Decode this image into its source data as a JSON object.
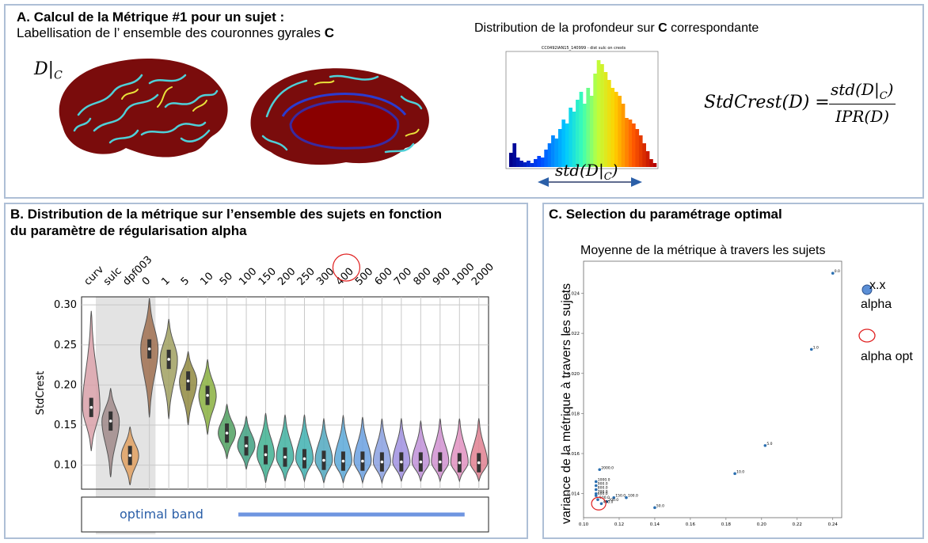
{
  "panelA": {
    "title": "A. Calcul de la Métrique #1 pour un sujet :",
    "subtitle_text": "Labellisation de l’ ensemble des couronnes gyrales ",
    "subtitle_bold": "C",
    "dlabel": "D|",
    "dlabel_sub": "C",
    "hist_title_text": "Distribution de la profondeur sur ",
    "hist_title_bold": "C",
    "hist_title_after": " correspondante",
    "hist_small_title": "CC0492IAN15_140999 - dist sulc on crests",
    "std_label": "std(D|",
    "std_sub": "C",
    "std_close": ")",
    "formula_lhs": "StdCrest(D) =",
    "formula_num": "std(D|",
    "formula_num_sub": "C",
    "formula_den": "IPR(D)"
  },
  "panelB": {
    "title": "B. Distribution de la métrique sur l’ensemble des sujets en fonction\ndu paramètre de régularisation alpha",
    "ylabel": "StdCrest",
    "band_label": "optimal band",
    "chart_data": {
      "type": "violin",
      "categories": [
        "curv",
        "sulc",
        "dpf003",
        "0",
        "1",
        "5",
        "10",
        "50",
        "100",
        "150",
        "200",
        "250",
        "300",
        "400",
        "500",
        "600",
        "700",
        "800",
        "900",
        "1000",
        "2000"
      ],
      "medians": [
        0.172,
        0.155,
        0.112,
        0.245,
        0.232,
        0.205,
        0.187,
        0.14,
        0.124,
        0.113,
        0.11,
        0.108,
        0.106,
        0.105,
        0.105,
        0.104,
        0.104,
        0.104,
        0.104,
        0.103,
        0.103
      ],
      "ymin": [
        0.118,
        0.085,
        0.075,
        0.16,
        0.158,
        0.15,
        0.138,
        0.108,
        0.095,
        0.078,
        0.08,
        0.08,
        0.078,
        0.078,
        0.078,
        0.078,
        0.08,
        0.08,
        0.08,
        0.08,
        0.08
      ],
      "ymax": [
        0.292,
        0.196,
        0.148,
        0.308,
        0.282,
        0.242,
        0.232,
        0.176,
        0.161,
        0.165,
        0.163,
        0.163,
        0.158,
        0.162,
        0.16,
        0.158,
        0.158,
        0.155,
        0.158,
        0.158,
        0.158
      ],
      "ylim": [
        0.07,
        0.31
      ],
      "yticks": [
        "0.30",
        "0.25",
        "0.20",
        "0.15",
        "0.10"
      ],
      "highlighted": "400"
    }
  },
  "panelC": {
    "title": "C. Selection du paramétrage optimal",
    "plot_title": "Moyenne de la métrique à travers les sujets",
    "ylabel": "variance de la métrique à travers les sujets",
    "legend_point": "x.x",
    "legend_point_desc": "alpha",
    "legend_circle_desc": "alpha opt",
    "chart_data": {
      "type": "scatter",
      "xlim": [
        0.1,
        0.245
      ],
      "ylim": [
        0.0128,
        0.0256
      ],
      "xticks": [
        "0.10",
        "0.12",
        "0.14",
        "0.16",
        "0.18",
        "0.20",
        "0.22",
        "0.24"
      ],
      "yticks": [
        "0.014",
        "0.016",
        "0.018",
        "0.020",
        "0.022",
        "0.024"
      ],
      "points": [
        {
          "x": 0.24,
          "y": 0.025,
          "label": "0.0"
        },
        {
          "x": 0.228,
          "y": 0.0212,
          "label": "1.0"
        },
        {
          "x": 0.202,
          "y": 0.0164,
          "label": "5.0"
        },
        {
          "x": 0.185,
          "y": 0.015,
          "label": "10.0"
        },
        {
          "x": 0.14,
          "y": 0.0133,
          "label": "50.0"
        },
        {
          "x": 0.124,
          "y": 0.0138,
          "label": "100.0"
        },
        {
          "x": 0.117,
          "y": 0.0138,
          "label": "150.0"
        },
        {
          "x": 0.113,
          "y": 0.0136,
          "label": "200.0"
        },
        {
          "x": 0.11,
          "y": 0.0135,
          "label": "400.0"
        },
        {
          "x": 0.109,
          "y": 0.0152,
          "label": "2000.0"
        },
        {
          "x": 0.107,
          "y": 0.0146,
          "label": "1000.0"
        },
        {
          "x": 0.107,
          "y": 0.0144,
          "label": "900.0"
        },
        {
          "x": 0.107,
          "y": 0.0142,
          "label": "800.0"
        },
        {
          "x": 0.107,
          "y": 0.014,
          "label": "700.0"
        },
        {
          "x": 0.107,
          "y": 0.0139,
          "label": "600.0"
        },
        {
          "x": 0.108,
          "y": 0.0137,
          "label": "500.0"
        }
      ],
      "optimal": {
        "x": 0.1085,
        "y": 0.0135
      }
    }
  },
  "colors": {
    "border": "#aebfd6",
    "band": "#6f95e0",
    "band_text": "#2b5fa8",
    "circle": "#e02020",
    "point": "#2b6fb0"
  }
}
